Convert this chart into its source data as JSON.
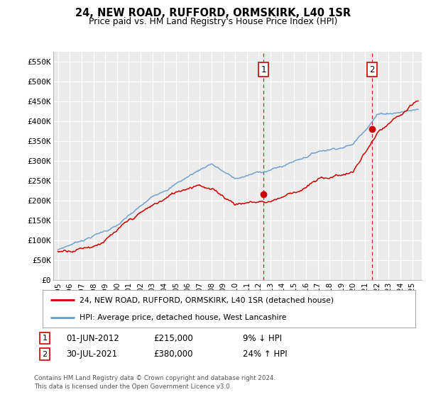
{
  "title": "24, NEW ROAD, RUFFORD, ORMSKIRK, L40 1SR",
  "subtitle": "Price paid vs. HM Land Registry's House Price Index (HPI)",
  "red_label": "24, NEW ROAD, RUFFORD, ORMSKIRK, L40 1SR (detached house)",
  "blue_label": "HPI: Average price, detached house, West Lancashire",
  "annotation1": {
    "num": "1",
    "date": "01-JUN-2012",
    "price": "£215,000",
    "pct": "9% ↓ HPI"
  },
  "annotation2": {
    "num": "2",
    "date": "30-JUL-2021",
    "price": "£380,000",
    "pct": "24% ↑ HPI"
  },
  "footnote": "Contains HM Land Registry data © Crown copyright and database right 2024.\nThis data is licensed under the Open Government Licence v3.0.",
  "ylim": [
    0,
    575000
  ],
  "yticks": [
    0,
    50000,
    100000,
    150000,
    200000,
    250000,
    300000,
    350000,
    400000,
    450000,
    500000,
    550000
  ],
  "ytick_labels": [
    "£0",
    "£50K",
    "£100K",
    "£150K",
    "£200K",
    "£250K",
    "£300K",
    "£350K",
    "£400K",
    "£450K",
    "£500K",
    "£550K"
  ],
  "background_color": "#ffffff",
  "plot_bg_color": "#ebebeb",
  "grid_color": "#ffffff",
  "red_color": "#cc0000",
  "blue_color": "#6699cc",
  "dashed_color": "#cc0000",
  "marker1_x": 2012.42,
  "marker2_x": 2021.58,
  "marker1_y": 215000,
  "marker2_y": 380000,
  "xlim_left": 1994.6,
  "xlim_right": 2025.8
}
